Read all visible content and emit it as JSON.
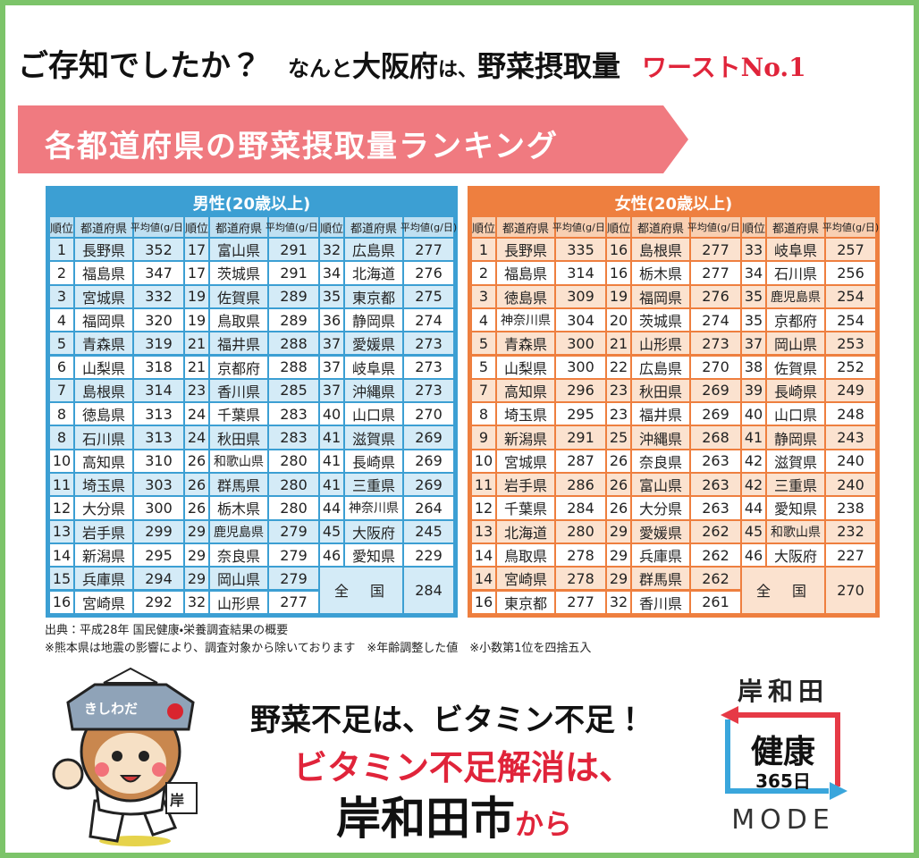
{
  "header": {
    "parts": [
      "ご存知でしたか？",
      "なんと",
      "大阪府",
      "は、",
      "野菜摂取量",
      "ワーストNo.1"
    ]
  },
  "banner": "各都道府県の野菜摂取量ランキング",
  "tables": [
    {
      "title": "男性(20歳以上)",
      "columns": [
        "順位",
        "都道府県",
        "平均値(g/日)"
      ],
      "groups": [
        [
          [
            1,
            "長野県",
            352
          ],
          [
            2,
            "福島県",
            347
          ],
          [
            3,
            "宮城県",
            332
          ],
          [
            4,
            "福岡県",
            320
          ],
          [
            5,
            "青森県",
            319
          ],
          [
            6,
            "山梨県",
            318
          ],
          [
            7,
            "島根県",
            314
          ],
          [
            8,
            "徳島県",
            313
          ],
          [
            8,
            "石川県",
            313
          ],
          [
            10,
            "高知県",
            310
          ],
          [
            11,
            "埼玉県",
            303
          ],
          [
            12,
            "大分県",
            300
          ],
          [
            13,
            "岩手県",
            299
          ],
          [
            14,
            "新潟県",
            295
          ],
          [
            15,
            "兵庫県",
            294
          ],
          [
            16,
            "宮崎県",
            292
          ]
        ],
        [
          [
            17,
            "富山県",
            291
          ],
          [
            17,
            "茨城県",
            291
          ],
          [
            19,
            "佐賀県",
            289
          ],
          [
            19,
            "鳥取県",
            289
          ],
          [
            21,
            "福井県",
            288
          ],
          [
            21,
            "京都府",
            288
          ],
          [
            23,
            "香川県",
            285
          ],
          [
            24,
            "千葉県",
            283
          ],
          [
            24,
            "秋田県",
            283
          ],
          [
            26,
            "和歌山県",
            280
          ],
          [
            26,
            "群馬県",
            280
          ],
          [
            26,
            "栃木県",
            280
          ],
          [
            29,
            "鹿児島県",
            279
          ],
          [
            29,
            "奈良県",
            279
          ],
          [
            29,
            "岡山県",
            279
          ],
          [
            32,
            "山形県",
            277
          ]
        ],
        [
          [
            32,
            "広島県",
            277
          ],
          [
            34,
            "北海道",
            276
          ],
          [
            35,
            "東京都",
            275
          ],
          [
            36,
            "静岡県",
            274
          ],
          [
            37,
            "愛媛県",
            273
          ],
          [
            37,
            "岐阜県",
            273
          ],
          [
            37,
            "沖縄県",
            273
          ],
          [
            40,
            "山口県",
            270
          ],
          [
            41,
            "滋賀県",
            269
          ],
          [
            41,
            "長崎県",
            269
          ],
          [
            41,
            "三重県",
            269
          ],
          [
            44,
            "神奈川県",
            264
          ],
          [
            45,
            "大阪府",
            245
          ],
          [
            46,
            "愛知県",
            229
          ]
        ]
      ],
      "national": {
        "label": "全　国",
        "value": 284
      }
    },
    {
      "title": "女性(20歳以上)",
      "columns": [
        "順位",
        "都道府県",
        "平均値(g/日)"
      ],
      "groups": [
        [
          [
            1,
            "長野県",
            335
          ],
          [
            2,
            "福島県",
            314
          ],
          [
            3,
            "徳島県",
            309
          ],
          [
            4,
            "神奈川県",
            304
          ],
          [
            5,
            "青森県",
            300
          ],
          [
            5,
            "山梨県",
            300
          ],
          [
            7,
            "高知県",
            296
          ],
          [
            8,
            "埼玉県",
            295
          ],
          [
            9,
            "新潟県",
            291
          ],
          [
            10,
            "宮城県",
            287
          ],
          [
            11,
            "岩手県",
            286
          ],
          [
            12,
            "千葉県",
            284
          ],
          [
            13,
            "北海道",
            280
          ],
          [
            14,
            "鳥取県",
            278
          ],
          [
            14,
            "宮崎県",
            278
          ],
          [
            16,
            "東京都",
            277
          ]
        ],
        [
          [
            16,
            "島根県",
            277
          ],
          [
            16,
            "栃木県",
            277
          ],
          [
            19,
            "福岡県",
            276
          ],
          [
            20,
            "茨城県",
            274
          ],
          [
            21,
            "山形県",
            273
          ],
          [
            22,
            "広島県",
            270
          ],
          [
            23,
            "秋田県",
            269
          ],
          [
            23,
            "福井県",
            269
          ],
          [
            25,
            "沖縄県",
            268
          ],
          [
            26,
            "奈良県",
            263
          ],
          [
            26,
            "富山県",
            263
          ],
          [
            26,
            "大分県",
            263
          ],
          [
            29,
            "愛媛県",
            262
          ],
          [
            29,
            "兵庫県",
            262
          ],
          [
            29,
            "群馬県",
            262
          ],
          [
            32,
            "香川県",
            261
          ]
        ],
        [
          [
            33,
            "岐阜県",
            257
          ],
          [
            34,
            "石川県",
            256
          ],
          [
            35,
            "鹿児島県",
            254
          ],
          [
            35,
            "京都府",
            254
          ],
          [
            37,
            "岡山県",
            253
          ],
          [
            38,
            "佐賀県",
            252
          ],
          [
            39,
            "長崎県",
            249
          ],
          [
            40,
            "山口県",
            248
          ],
          [
            41,
            "静岡県",
            243
          ],
          [
            42,
            "滋賀県",
            240
          ],
          [
            42,
            "三重県",
            240
          ],
          [
            44,
            "愛知県",
            238
          ],
          [
            45,
            "和歌山県",
            232
          ],
          [
            46,
            "大阪府",
            227
          ]
        ]
      ],
      "national": {
        "label": "全　国",
        "value": 270
      }
    }
  ],
  "footnotes": [
    "出典：平成28年 国民健康・栄養調査結果の概要",
    "※熊本県は地震の影響により、調査対象から除いております　※年齢調整した値　※小数第1位を四捨五入"
  ],
  "mascot": {
    "hat": "きしわだ",
    "badge": "岸"
  },
  "slogan": {
    "line1": "野菜不足は、ビタミン不足！",
    "line2": "ビタミン不足解消は、",
    "city": "岸和田市",
    "suffix": "から"
  },
  "logo": {
    "top": "岸和田",
    "main": "健康",
    "sub": "365日",
    "bottom": "MODE"
  }
}
